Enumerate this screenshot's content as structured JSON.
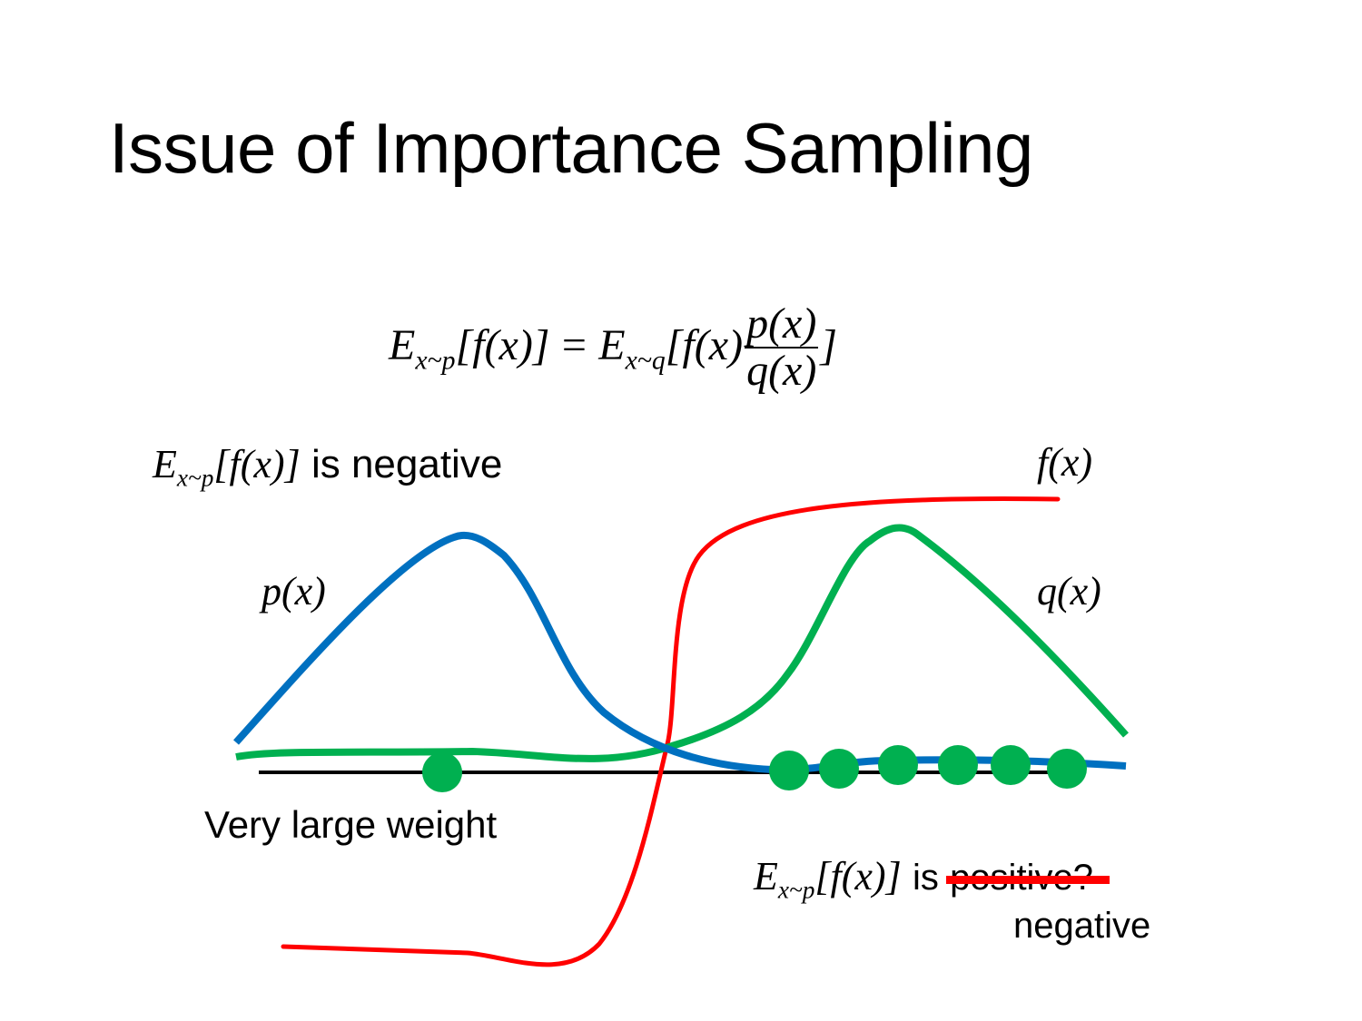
{
  "title": "Issue of Importance Sampling",
  "equation": {
    "lhs_E": "E",
    "lhs_sub": "x~p",
    "lhs_arg": "[f(x)]",
    "equals": "=",
    "rhs_E": "E",
    "rhs_sub": "x~q",
    "rhs_open": "[f(x)",
    "frac_num": "p(x)",
    "frac_den": "q(x)",
    "rhs_close": "]"
  },
  "labels": {
    "top_left": {
      "E": "E",
      "sub": "x~p",
      "arg": "[f(x)]",
      "text": "is negative"
    },
    "f": "f(x)",
    "p": "p(x)",
    "q": "q(x)",
    "very_large_weight": "Very large weight",
    "bottom_right": {
      "E": "E",
      "sub": "x~p",
      "arg": "[f(x)]",
      "is": "is",
      "struck": "positive?",
      "correction": "negative"
    }
  },
  "colors": {
    "p_curve": "#0070C0",
    "q_curve": "#00B050",
    "f_curve": "#FF0000",
    "axis": "#000000",
    "samples": "#00B050",
    "strike": "#FF0000"
  }
}
